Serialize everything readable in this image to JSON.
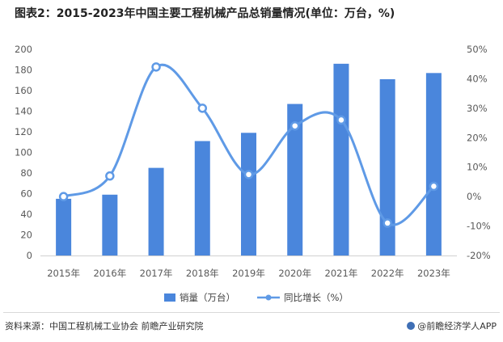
{
  "title": "图表2：2015-2023年中国主要工程机械产品总销量情况(单位：万台，%)",
  "source": "资料来源：中国工程机械工业协会 前瞻产业研究院",
  "brand": "@前瞻经济学人APP",
  "colors": {
    "bar": "#4a86dc",
    "line": "#5f9ae6",
    "axis_text": "#595959"
  },
  "chart_data": {
    "type": "bar+line",
    "categories": [
      "2015年",
      "2016年",
      "2017年",
      "2018年",
      "2019年",
      "2020年",
      "2021年",
      "2022年",
      "2023年"
    ],
    "series": [
      {
        "name": "销量（万台）",
        "type": "bar",
        "axis": "left",
        "values": [
          55,
          59,
          85,
          111,
          119,
          147,
          186,
          171,
          177
        ]
      },
      {
        "name": "同比增长（%）",
        "type": "line",
        "axis": "right",
        "values": [
          0,
          7,
          44,
          30,
          7.5,
          24,
          26,
          -9,
          3.5
        ]
      }
    ],
    "y_left": {
      "min": 0,
      "max": 200,
      "step": 20,
      "ticks": [
        "0",
        "20",
        "40",
        "60",
        "80",
        "100",
        "120",
        "140",
        "160",
        "180",
        "200"
      ]
    },
    "y_right": {
      "min": -20,
      "max": 50,
      "step": 10,
      "ticks": [
        "-20%",
        "-10%",
        "0%",
        "10%",
        "20%",
        "30%",
        "40%",
        "50%"
      ]
    },
    "legend": {
      "position": "bottom",
      "items": [
        "销量（万台）",
        "同比增长（%）"
      ]
    },
    "grid": false
  }
}
